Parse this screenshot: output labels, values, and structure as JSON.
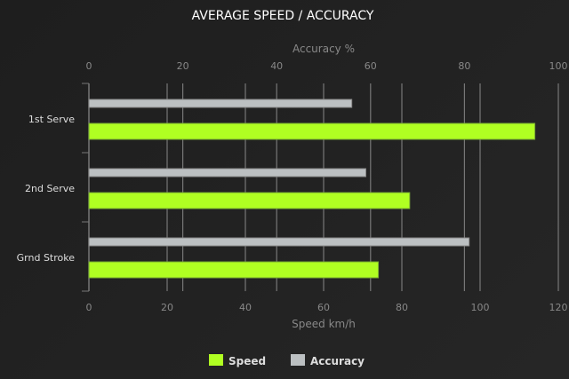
{
  "chart_data": {
    "type": "bar",
    "orientation": "horizontal",
    "title": "AVERAGE SPEED / ACCURACY",
    "categories": [
      "1st Serve",
      "2nd Serve",
      "Grnd Stroke"
    ],
    "series": [
      {
        "name": "Speed",
        "values": [
          114,
          82,
          74
        ],
        "color": "#b0ff22",
        "axis": "bottom"
      },
      {
        "name": "Accuracy",
        "values": [
          56,
          59,
          81
        ],
        "color": "#bcc0c2",
        "axis": "top"
      }
    ],
    "x_bottom": {
      "label": "Speed km/h",
      "range": [
        0,
        120
      ],
      "ticks": [
        "0",
        "20",
        "40",
        "60",
        "80",
        "100",
        "120"
      ]
    },
    "x_top": {
      "label": "Accuracy %",
      "range": [
        0,
        100
      ],
      "ticks": [
        "0",
        "20",
        "40",
        "60",
        "80",
        "100"
      ]
    },
    "grid": true,
    "legend": "bottom"
  }
}
